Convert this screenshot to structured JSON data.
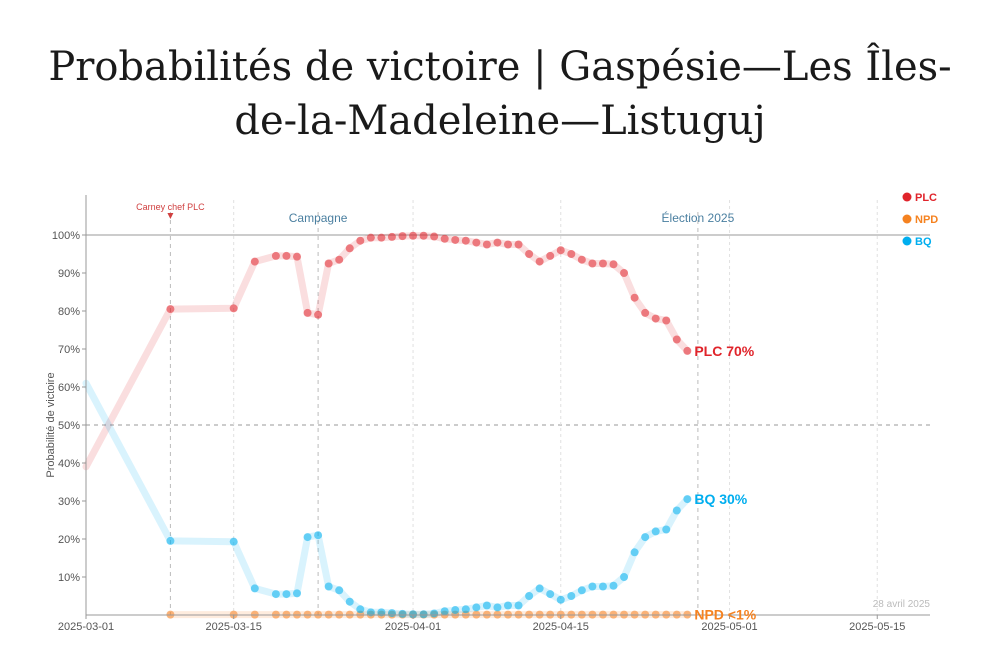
{
  "chart_data": {
    "type": "line",
    "title": "Probabilités de victoire | Gaspésie—Les Îles-de-la-Madeleine—Listuguj",
    "ylabel": "Probabilité de victoire",
    "ylim": [
      0,
      100
    ],
    "xlim": [
      "2025-03-01",
      "2025-05-20"
    ],
    "x_ticks": [
      "2025-03-01",
      "2025-03-15",
      "2025-04-01",
      "2025-04-15",
      "2025-05-01",
      "2025-05-15"
    ],
    "y_ticks": [
      "10%",
      "20%",
      "30%",
      "40%",
      "50%",
      "60%",
      "70%",
      "80%",
      "90%",
      "100%"
    ],
    "grid": false,
    "legend_position": "top-right",
    "annotations": [
      {
        "date": "2025-03-09",
        "text": "Carney chef PLC",
        "color": "#d04040"
      },
      {
        "date": "2025-03-23",
        "text": "Campagne",
        "color": "#4a7fa0"
      },
      {
        "date": "2025-04-28",
        "text": "Élection 2025",
        "color": "#4a7fa0"
      }
    ],
    "date_note": "28 avril 2025",
    "end_labels": [
      "PLC 70%",
      "BQ 30%",
      "NPD <1%"
    ],
    "series": [
      {
        "name": "PLC",
        "color": "#e0242b",
        "points": [
          [
            "2025-03-09",
            80.5
          ],
          [
            "2025-03-15",
            80.7
          ],
          [
            "2025-03-17",
            93
          ],
          [
            "2025-03-19",
            94.5
          ],
          [
            "2025-03-20",
            94.5
          ],
          [
            "2025-03-21",
            94.3
          ],
          [
            "2025-03-22",
            79.5
          ],
          [
            "2025-03-23",
            79
          ],
          [
            "2025-03-24",
            92.5
          ],
          [
            "2025-03-25",
            93.5
          ],
          [
            "2025-03-26",
            96.5
          ],
          [
            "2025-03-27",
            98.5
          ],
          [
            "2025-03-28",
            99.3
          ],
          [
            "2025-03-29",
            99.3
          ],
          [
            "2025-03-30",
            99.5
          ],
          [
            "2025-03-31",
            99.7
          ],
          [
            "2025-04-01",
            99.8
          ],
          [
            "2025-04-02",
            99.8
          ],
          [
            "2025-04-03",
            99.6
          ],
          [
            "2025-04-04",
            99
          ],
          [
            "2025-04-05",
            98.7
          ],
          [
            "2025-04-06",
            98.5
          ],
          [
            "2025-04-07",
            98
          ],
          [
            "2025-04-08",
            97.5
          ],
          [
            "2025-04-09",
            98
          ],
          [
            "2025-04-10",
            97.5
          ],
          [
            "2025-04-11",
            97.5
          ],
          [
            "2025-04-12",
            95
          ],
          [
            "2025-04-13",
            93
          ],
          [
            "2025-04-14",
            94.5
          ],
          [
            "2025-04-15",
            96
          ],
          [
            "2025-04-16",
            95
          ],
          [
            "2025-04-17",
            93.5
          ],
          [
            "2025-04-18",
            92.5
          ],
          [
            "2025-04-19",
            92.5
          ],
          [
            "2025-04-20",
            92.3
          ],
          [
            "2025-04-21",
            90
          ],
          [
            "2025-04-22",
            83.5
          ],
          [
            "2025-04-23",
            79.5
          ],
          [
            "2025-04-24",
            78
          ],
          [
            "2025-04-25",
            77.5
          ],
          [
            "2025-04-26",
            72.5
          ],
          [
            "2025-04-27",
            69.5
          ]
        ]
      },
      {
        "name": "NPD",
        "color": "#f58220",
        "points": [
          [
            "2025-03-09",
            0.1
          ],
          [
            "2025-03-15",
            0.1
          ],
          [
            "2025-03-17",
            0.1
          ],
          [
            "2025-03-19",
            0.1
          ],
          [
            "2025-03-20",
            0.1
          ],
          [
            "2025-03-21",
            0.1
          ],
          [
            "2025-03-22",
            0.1
          ],
          [
            "2025-03-23",
            0.1
          ],
          [
            "2025-03-24",
            0.1
          ],
          [
            "2025-03-25",
            0.1
          ],
          [
            "2025-03-26",
            0.1
          ],
          [
            "2025-03-27",
            0.1
          ],
          [
            "2025-03-28",
            0.1
          ],
          [
            "2025-03-29",
            0.1
          ],
          [
            "2025-03-30",
            0.1
          ],
          [
            "2025-03-31",
            0.1
          ],
          [
            "2025-04-01",
            0.1
          ],
          [
            "2025-04-02",
            0.1
          ],
          [
            "2025-04-03",
            0.1
          ],
          [
            "2025-04-04",
            0.1
          ],
          [
            "2025-04-05",
            0.1
          ],
          [
            "2025-04-06",
            0.1
          ],
          [
            "2025-04-07",
            0.1
          ],
          [
            "2025-04-08",
            0.1
          ],
          [
            "2025-04-09",
            0.1
          ],
          [
            "2025-04-10",
            0.1
          ],
          [
            "2025-04-11",
            0.1
          ],
          [
            "2025-04-12",
            0.1
          ],
          [
            "2025-04-13",
            0.1
          ],
          [
            "2025-04-14",
            0.1
          ],
          [
            "2025-04-15",
            0.1
          ],
          [
            "2025-04-16",
            0.1
          ],
          [
            "2025-04-17",
            0.1
          ],
          [
            "2025-04-18",
            0.1
          ],
          [
            "2025-04-19",
            0.1
          ],
          [
            "2025-04-20",
            0.1
          ],
          [
            "2025-04-21",
            0.1
          ],
          [
            "2025-04-22",
            0.1
          ],
          [
            "2025-04-23",
            0.1
          ],
          [
            "2025-04-24",
            0.1
          ],
          [
            "2025-04-25",
            0.1
          ],
          [
            "2025-04-26",
            0.1
          ],
          [
            "2025-04-27",
            0.1
          ]
        ]
      },
      {
        "name": "BQ",
        "color": "#00aeef",
        "points": [
          [
            "2025-03-09",
            19.5
          ],
          [
            "2025-03-15",
            19.3
          ],
          [
            "2025-03-17",
            7
          ],
          [
            "2025-03-19",
            5.5
          ],
          [
            "2025-03-20",
            5.5
          ],
          [
            "2025-03-21",
            5.7
          ],
          [
            "2025-03-22",
            20.5
          ],
          [
            "2025-03-23",
            21
          ],
          [
            "2025-03-24",
            7.5
          ],
          [
            "2025-03-25",
            6.5
          ],
          [
            "2025-03-26",
            3.5
          ],
          [
            "2025-03-27",
            1.5
          ],
          [
            "2025-03-28",
            0.7
          ],
          [
            "2025-03-29",
            0.7
          ],
          [
            "2025-03-30",
            0.5
          ],
          [
            "2025-03-31",
            0.3
          ],
          [
            "2025-04-01",
            0.2
          ],
          [
            "2025-04-02",
            0.2
          ],
          [
            "2025-04-03",
            0.4
          ],
          [
            "2025-04-04",
            1
          ],
          [
            "2025-04-05",
            1.3
          ],
          [
            "2025-04-06",
            1.5
          ],
          [
            "2025-04-07",
            2
          ],
          [
            "2025-04-08",
            2.5
          ],
          [
            "2025-04-09",
            2
          ],
          [
            "2025-04-10",
            2.5
          ],
          [
            "2025-04-11",
            2.5
          ],
          [
            "2025-04-12",
            5
          ],
          [
            "2025-04-13",
            7
          ],
          [
            "2025-04-14",
            5.5
          ],
          [
            "2025-04-15",
            4
          ],
          [
            "2025-04-16",
            5
          ],
          [
            "2025-04-17",
            6.5
          ],
          [
            "2025-04-18",
            7.5
          ],
          [
            "2025-04-19",
            7.5
          ],
          [
            "2025-04-20",
            7.7
          ],
          [
            "2025-04-21",
            10
          ],
          [
            "2025-04-22",
            16.5
          ],
          [
            "2025-04-23",
            20.5
          ],
          [
            "2025-04-24",
            22
          ],
          [
            "2025-04-25",
            22.5
          ],
          [
            "2025-04-26",
            27.5
          ],
          [
            "2025-04-27",
            30.5
          ]
        ]
      }
    ],
    "pre_trend": {
      "from_date": "2025-03-01",
      "PLC": 39,
      "BQ": 61
    }
  }
}
